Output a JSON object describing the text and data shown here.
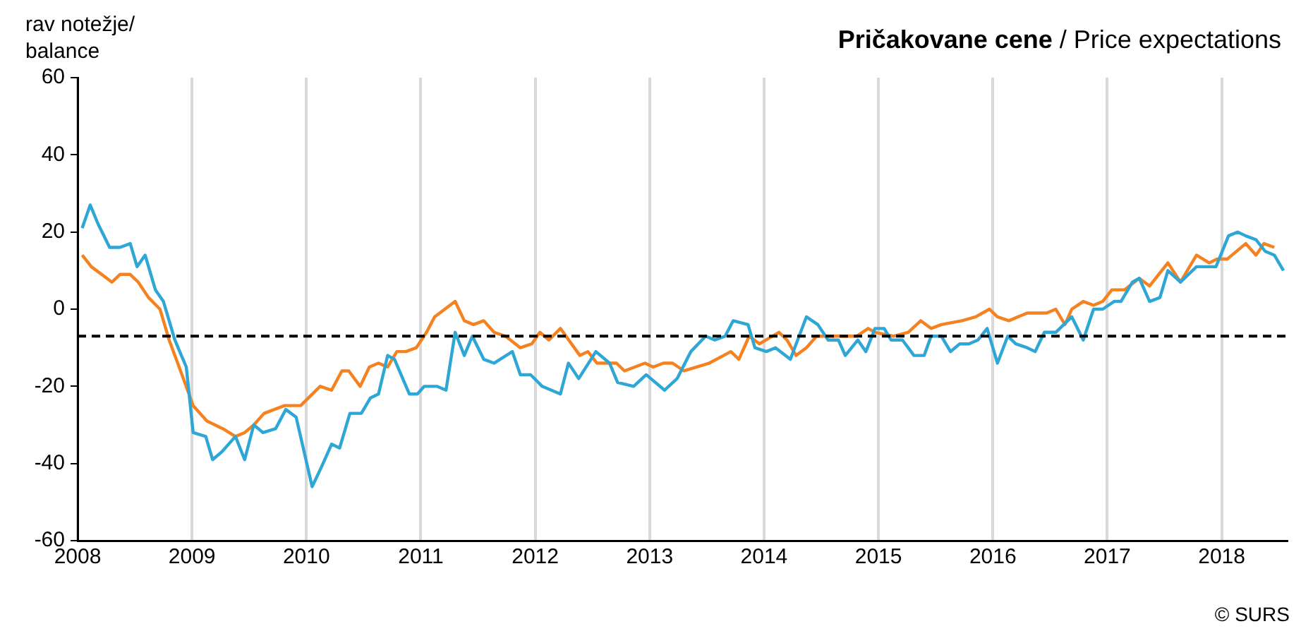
{
  "chart_data": {
    "type": "line",
    "title": "Pričakovane cene / Price expectations",
    "ylabel": "rav notežje/ balance",
    "annotations": [
      "© SURS"
    ],
    "xlim": [
      2008,
      2018.57
    ],
    "xticks": [
      2008,
      2009,
      2010,
      2011,
      2012,
      2013,
      2014,
      2015,
      2016,
      2017,
      2018
    ],
    "ylim": [
      -60,
      60
    ],
    "yticks": [
      -60,
      -40,
      -20,
      0,
      20,
      40,
      60
    ],
    "grid": "x",
    "legend": false,
    "marker": "none",
    "line_style": "solid",
    "ref_lines": [
      {
        "axis": "y",
        "value": -7,
        "color": "#000000",
        "line_style": "dashed"
      }
    ],
    "series": [
      {
        "color": "#2ea7d6",
        "x": [
          2008.04,
          2008.11,
          2008.18,
          2008.28,
          2008.37,
          2008.46,
          2008.52,
          2008.59,
          2008.68,
          2008.75,
          2008.85,
          2008.95,
          2009.01,
          2009.12,
          2009.18,
          2009.26,
          2009.38,
          2009.46,
          2009.54,
          2009.62,
          2009.73,
          2009.82,
          2009.91,
          2010.05,
          2010.13,
          2010.22,
          2010.29,
          2010.38,
          2010.48,
          2010.56,
          2010.63,
          2010.71,
          2010.77,
          2010.9,
          2010.97,
          2011.03,
          2011.14,
          2011.22,
          2011.3,
          2011.38,
          2011.45,
          2011.55,
          2011.64,
          2011.8,
          2011.87,
          2011.96,
          2012.06,
          2012.22,
          2012.29,
          2012.38,
          2012.53,
          2012.65,
          2012.72,
          2012.86,
          2012.97,
          2013.13,
          2013.24,
          2013.36,
          2013.49,
          2013.57,
          2013.66,
          2013.73,
          2013.86,
          2013.92,
          2014.02,
          2014.1,
          2014.23,
          2014.37,
          2014.47,
          2014.56,
          2014.65,
          2014.71,
          2014.82,
          2014.89,
          2014.97,
          2015.05,
          2015.11,
          2015.21,
          2015.31,
          2015.4,
          2015.46,
          2015.55,
          2015.63,
          2015.71,
          2015.79,
          2015.87,
          2015.95,
          2016.04,
          2016.13,
          2016.2,
          2016.3,
          2016.37,
          2016.45,
          2016.55,
          2016.69,
          2016.79,
          2016.88,
          2016.96,
          2017.06,
          2017.12,
          2017.22,
          2017.28,
          2017.37,
          2017.46,
          2017.53,
          2017.64,
          2017.78,
          2017.95,
          2018.06,
          2018.14,
          2018.21,
          2018.3,
          2018.38,
          2018.46,
          2018.54
        ],
        "values": [
          21,
          27,
          22,
          16,
          16,
          17,
          11,
          14,
          5,
          2,
          -8,
          -15,
          -32,
          -33,
          -39,
          -37,
          -33,
          -39,
          -30,
          -32,
          -31,
          -26,
          -28,
          -46,
          -41,
          -35,
          -36,
          -27,
          -27,
          -23,
          -22,
          -12,
          -13,
          -22,
          -22,
          -20,
          -20,
          -21,
          -6,
          -12,
          -7,
          -13,
          -14,
          -11,
          -17,
          -17,
          -20,
          -22,
          -14,
          -18,
          -11,
          -14,
          -19,
          -20,
          -17,
          -21,
          -18,
          -11,
          -7,
          -8,
          -7,
          -3,
          -4,
          -10,
          -11,
          -10,
          -13,
          -2,
          -4,
          -8,
          -8,
          -12,
          -8,
          -11,
          -5,
          -5,
          -8,
          -8,
          -12,
          -12,
          -7,
          -7,
          -11,
          -9,
          -9,
          -8,
          -5,
          -14,
          -7,
          -9,
          -10,
          -11,
          -6,
          -6,
          -2,
          -8,
          0,
          0,
          2,
          2,
          7,
          8,
          2,
          3,
          10,
          7,
          11,
          11,
          19,
          20,
          19,
          18,
          15,
          14,
          10
        ]
      },
      {
        "color": "#f58220",
        "x": [
          2008.04,
          2008.12,
          2008.21,
          2008.3,
          2008.37,
          2008.46,
          2008.53,
          2008.62,
          2008.72,
          2008.8,
          2008.9,
          2009.01,
          2009.13,
          2009.27,
          2009.38,
          2009.46,
          2009.54,
          2009.63,
          2009.81,
          2009.95,
          2010.12,
          2010.22,
          2010.31,
          2010.37,
          2010.47,
          2010.55,
          2010.63,
          2010.71,
          2010.79,
          2010.87,
          2010.96,
          2011.05,
          2011.12,
          2011.3,
          2011.38,
          2011.46,
          2011.55,
          2011.64,
          2011.74,
          2011.87,
          2011.97,
          2012.04,
          2012.12,
          2012.22,
          2012.39,
          2012.46,
          2012.54,
          2012.71,
          2012.78,
          2012.96,
          2013.03,
          2013.12,
          2013.2,
          2013.3,
          2013.52,
          2013.71,
          2013.78,
          2013.87,
          2013.96,
          2014.13,
          2014.2,
          2014.28,
          2014.37,
          2014.46,
          2014.55,
          2014.63,
          2014.81,
          2014.91,
          2014.97,
          2015.13,
          2015.26,
          2015.37,
          2015.46,
          2015.55,
          2015.73,
          2015.85,
          2015.97,
          2016.04,
          2016.14,
          2016.3,
          2016.47,
          2016.55,
          2016.63,
          2016.69,
          2016.79,
          2016.88,
          2016.96,
          2017.04,
          2017.15,
          2017.28,
          2017.37,
          2017.53,
          2017.64,
          2017.78,
          2017.89,
          2017.96,
          2018.05,
          2018.21,
          2018.3,
          2018.37,
          2018.46
        ],
        "values": [
          14,
          11,
          9,
          7,
          9,
          9,
          7,
          3,
          0,
          -8,
          -16,
          -25,
          -29,
          -31,
          -33,
          -32,
          -30,
          -27,
          -25,
          -25,
          -20,
          -21,
          -16,
          -16,
          -20,
          -15,
          -14,
          -15,
          -11,
          -11,
          -10,
          -6,
          -2,
          2,
          -3,
          -4,
          -3,
          -6,
          -7,
          -10,
          -9,
          -6,
          -8,
          -5,
          -12,
          -11,
          -14,
          -14,
          -16,
          -14,
          -15,
          -14,
          -14,
          -16,
          -14,
          -11,
          -13,
          -7,
          -9,
          -6,
          -8,
          -12,
          -10,
          -7,
          -7,
          -7,
          -7,
          -5,
          -6,
          -7,
          -6,
          -3,
          -5,
          -4,
          -3,
          -2,
          0,
          -2,
          -3,
          -1,
          -1,
          0,
          -4,
          0,
          2,
          1,
          2,
          5,
          5,
          8,
          6,
          12,
          7,
          14,
          12,
          13,
          13,
          17,
          14,
          17,
          16
        ]
      }
    ]
  }
}
